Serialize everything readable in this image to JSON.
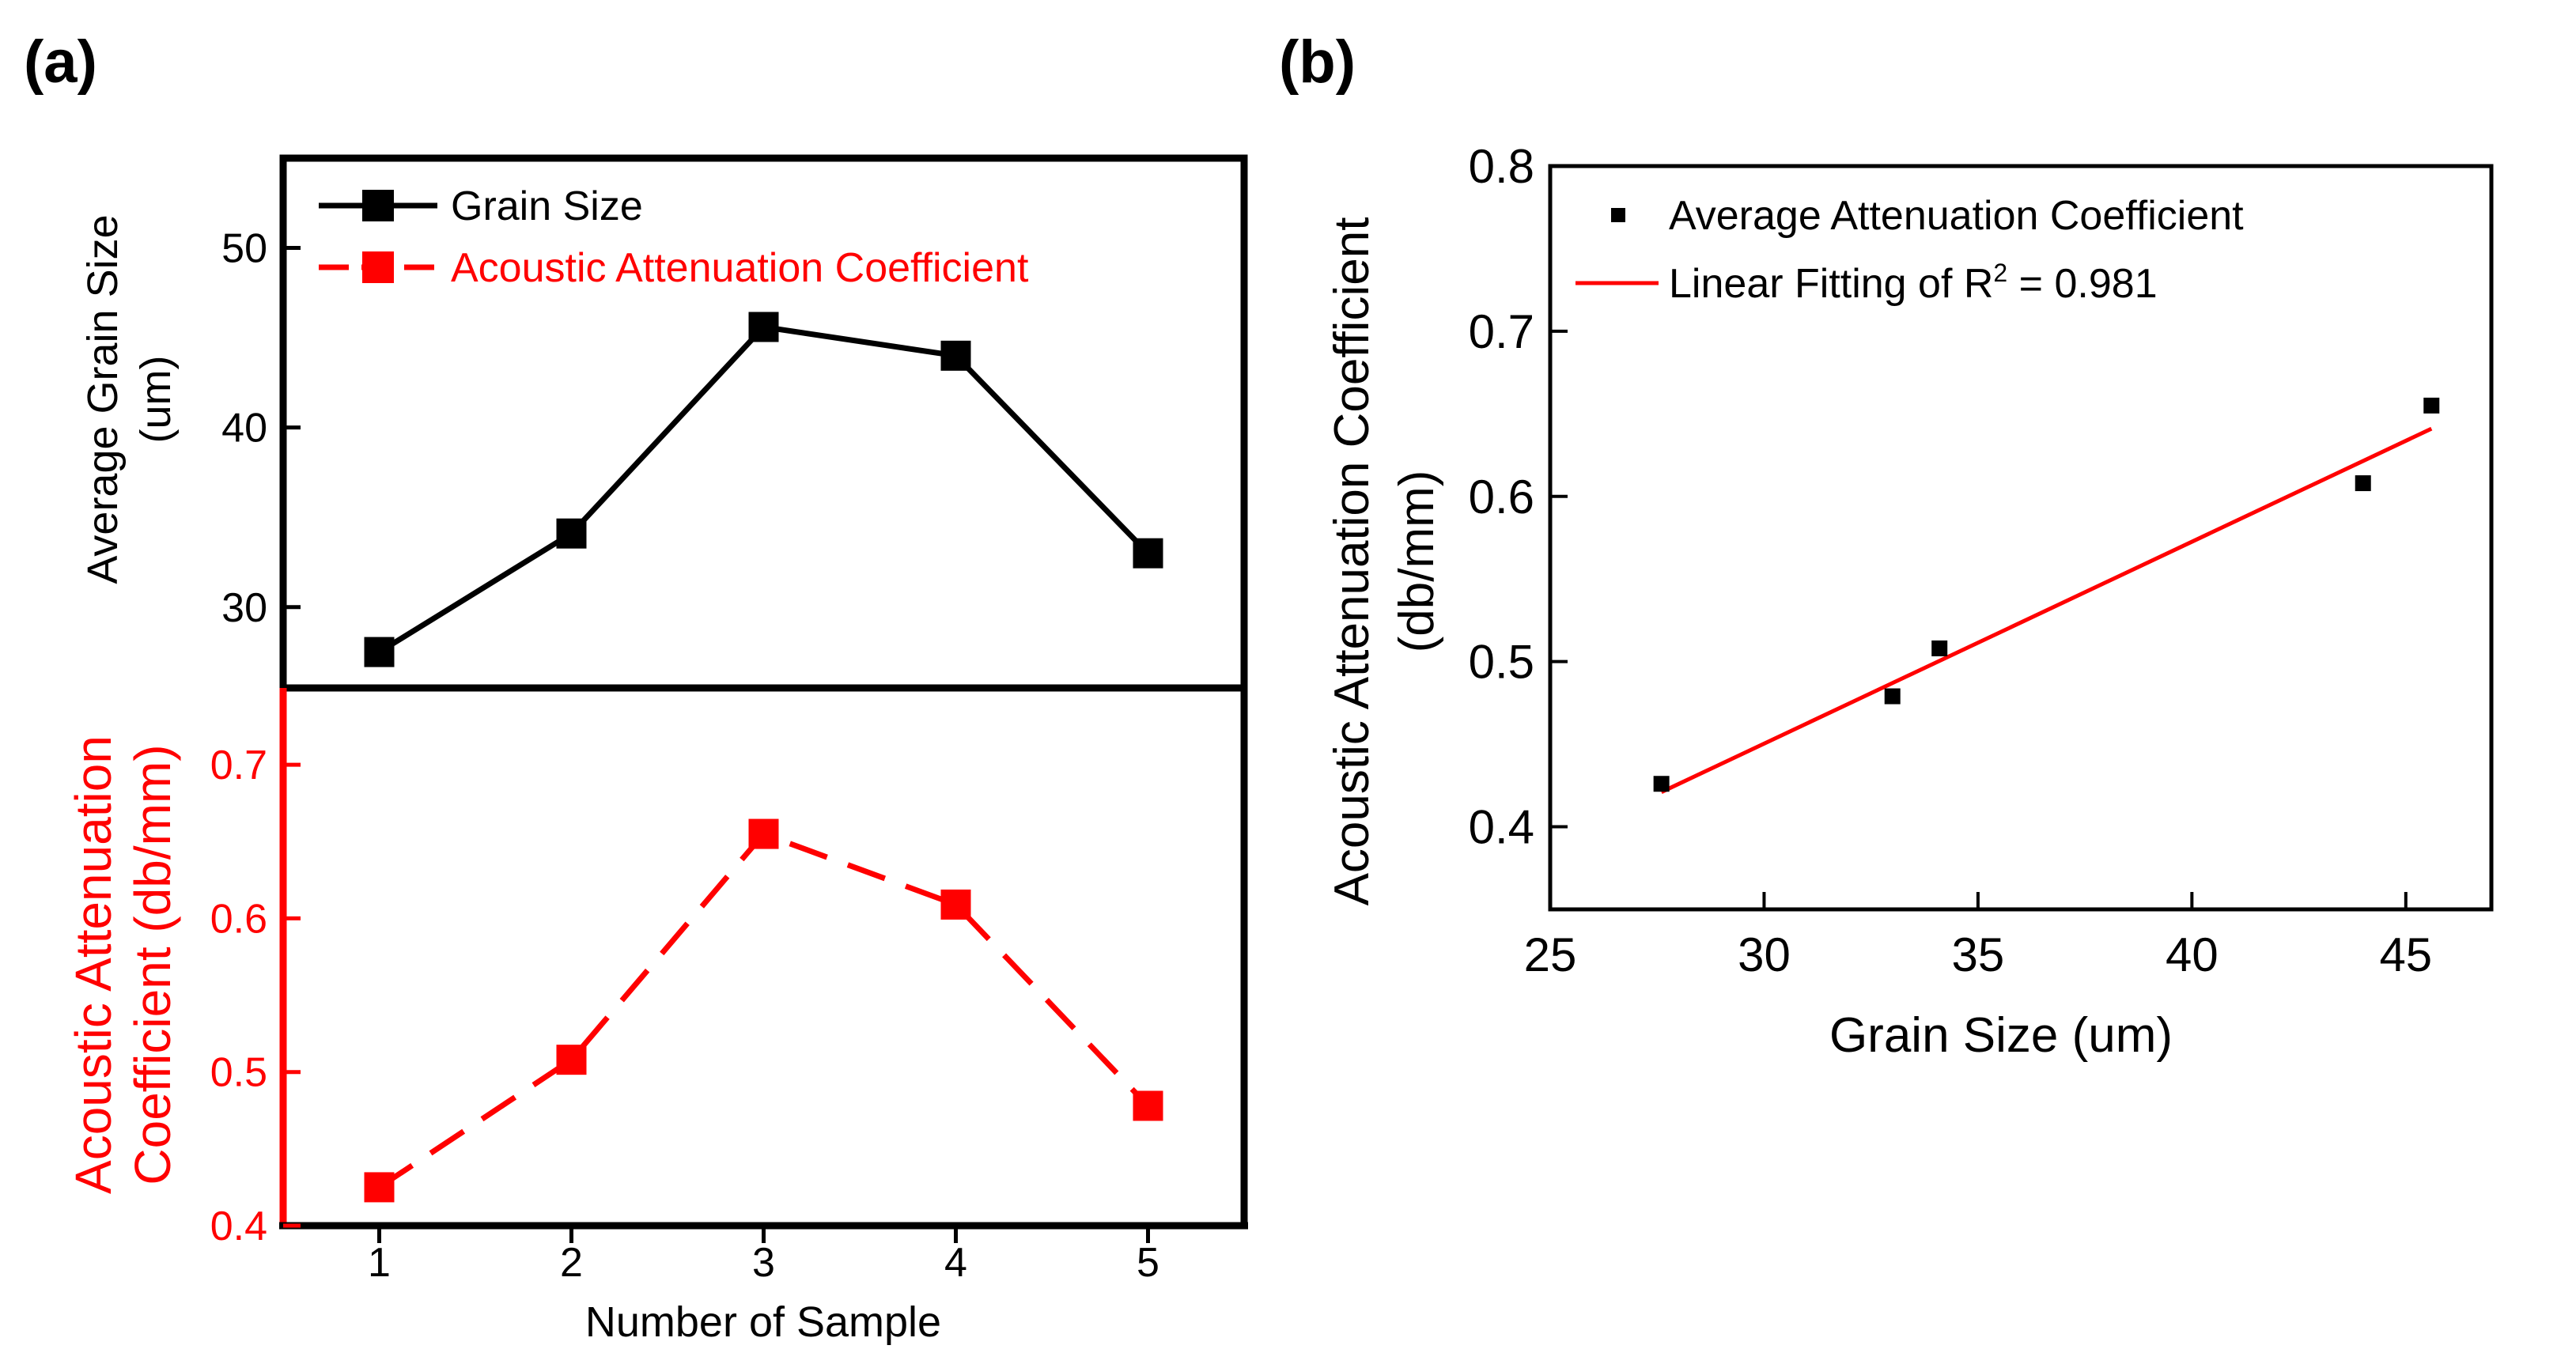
{
  "panels": {
    "a": {
      "label": "(a)",
      "xlabel": "Number of Sample",
      "legend": {
        "series1": "Grain Size",
        "series2": "Acoustic Attenuation Coefficient"
      }
    },
    "b": {
      "label": "(b)",
      "legend": {
        "points": "Average Attenuation Coefficient",
        "fit_prefix": "Linear Fitting of R",
        "fit_sup": "2",
        "fit_suffix": " = 0.981"
      }
    }
  },
  "colors": {
    "black": "#000000",
    "red": "#ff0000"
  },
  "chart_data": [
    {
      "id": "a-top",
      "type": "line",
      "x": [
        1,
        2,
        3,
        4,
        5
      ],
      "series": [
        {
          "name": "Grain Size",
          "values": [
            27.5,
            34.1,
            45.6,
            44.0,
            33.0
          ]
        }
      ],
      "ylabel_line1": "Average Grain Size",
      "ylabel_line2": "(um)",
      "yticks": [
        30,
        40,
        50
      ],
      "ylim": [
        25.5,
        55.0
      ],
      "xlim": [
        0.5,
        5.5
      ]
    },
    {
      "id": "a-bottom",
      "type": "line",
      "x": [
        1,
        2,
        3,
        4,
        5
      ],
      "xticks": [
        1,
        2,
        3,
        4,
        5
      ],
      "series": [
        {
          "name": "Acoustic Attenuation Coefficient",
          "values": [
            0.425,
            0.508,
            0.655,
            0.609,
            0.478
          ]
        }
      ],
      "ylabel_line1": "Acoustic Attenuation",
      "ylabel_line2": "Coefficient (db/mm)",
      "yticks": [
        0.4,
        0.5,
        0.6,
        0.7
      ],
      "ylim": [
        0.4,
        0.75
      ],
      "xlim": [
        0.5,
        5.5
      ]
    },
    {
      "id": "b",
      "type": "scatter",
      "title": "",
      "xlabel": "Grain Size (um)",
      "ylabel_line1": "Acoustic Attenuation Coefficient",
      "ylabel_line2": "(db/mm)",
      "xticks": [
        25,
        30,
        35,
        40,
        45
      ],
      "yticks": [
        0.4,
        0.5,
        0.6,
        0.7,
        0.8
      ],
      "xlim": [
        25.0,
        47.0
      ],
      "ylim": [
        0.35,
        0.8
      ],
      "series": [
        {
          "name": "Average Attenuation Coefficient",
          "points": [
            [
              27.6,
              0.426
            ],
            [
              33.0,
              0.479
            ],
            [
              34.1,
              0.508
            ],
            [
              44.0,
              0.608
            ],
            [
              45.6,
              0.655
            ]
          ]
        }
      ],
      "fit": {
        "name": "Linear Fitting",
        "r2": 0.981,
        "x": [
          27.6,
          45.6
        ],
        "y": [
          0.421,
          0.641
        ]
      }
    }
  ]
}
